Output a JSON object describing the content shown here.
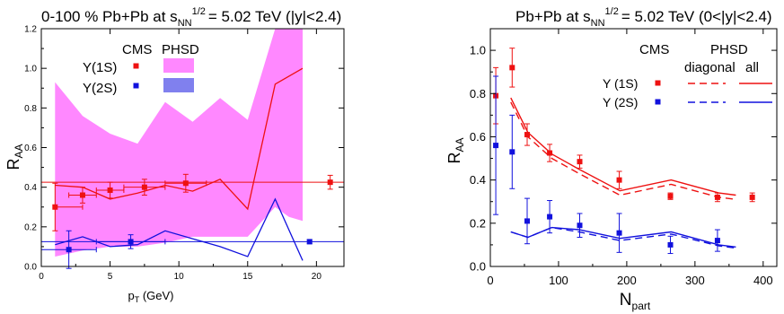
{
  "colors": {
    "cms1s": "#ee1111",
    "cms2s": "#1111dd",
    "band1s": "#ff88ff",
    "band2s": "#8080ee",
    "frame": "#000000"
  },
  "chart_data": [
    {
      "type": "line",
      "title_main": "0-100 % Pb+Pb at s",
      "title_sub": "NN",
      "title_sup": "1/2",
      "title_tail": "= 5.02 TeV (|y|<2.4)",
      "xlabel_main": "p",
      "xlabel_sub": "T",
      "xlabel_tail": " (GeV)",
      "ylabel_main": "R",
      "ylabel_sub": "AA",
      "xlim": [
        0,
        22
      ],
      "ylim": [
        0,
        1.2
      ],
      "xticks": [
        0,
        5,
        10,
        15,
        20
      ],
      "yticks": [
        0,
        0.2,
        0.4,
        0.6,
        0.8,
        1.0,
        1.2
      ],
      "legend": {
        "cms_label": "CMS",
        "phsd_label": "PHSD",
        "labels": [
          "Υ(1S)",
          "Υ(2S)"
        ]
      },
      "cms_1s": [
        {
          "x": 1.0,
          "y": 0.3,
          "xerr": [
            0.0,
            2.0
          ],
          "yerr": 0.12
        },
        {
          "x": 3.0,
          "y": 0.36,
          "xerr": [
            1.0,
            1.0
          ],
          "yerr": 0.04
        },
        {
          "x": 5.0,
          "y": 0.385,
          "xerr": [
            1.0,
            1.0
          ],
          "yerr": 0.04
        },
        {
          "x": 7.5,
          "y": 0.4,
          "xerr": [
            1.5,
            1.5
          ],
          "yerr": 0.04
        },
        {
          "x": 10.5,
          "y": 0.42,
          "xerr": [
            1.5,
            1.5
          ],
          "yerr": 0.045
        },
        {
          "x": 21.0,
          "y": 0.425,
          "xerr": [
            0,
            0
          ],
          "yerr": 0.035
        }
      ],
      "cms_1s_hline": 0.425,
      "cms_2s": [
        {
          "x": 2.0,
          "y": 0.085,
          "xerr": [
            2.0,
            2.0
          ],
          "yerr": 0.095
        },
        {
          "x": 6.5,
          "y": 0.125,
          "xerr": [
            2.5,
            2.5
          ],
          "yerr": 0.035
        },
        {
          "x": 19.5,
          "y": 0.125,
          "xerr": [
            0,
            0
          ],
          "yerr": 0.01
        }
      ],
      "cms_2s_hline": 0.125,
      "phsd_1s_band": {
        "x": [
          1,
          3,
          5,
          7,
          9,
          11,
          13,
          15,
          17,
          18,
          19
        ],
        "upper": [
          0.93,
          0.76,
          0.67,
          0.62,
          0.83,
          0.73,
          0.85,
          0.74,
          1.2,
          1.2,
          1.2
        ],
        "lower": [
          0.05,
          0.08,
          0.1,
          0.1,
          0.12,
          0.15,
          0.15,
          0.15,
          0.3,
          0.25,
          0.23
        ]
      },
      "phsd_1s_line": {
        "x": [
          1,
          3,
          5,
          7,
          9,
          11,
          13,
          15,
          17,
          19
        ],
        "y": [
          0.41,
          0.4,
          0.34,
          0.37,
          0.41,
          0.38,
          0.44,
          0.29,
          0.92,
          1.0
        ]
      },
      "phsd_2s_line": {
        "x": [
          1,
          3,
          5,
          7,
          9,
          11,
          13,
          15,
          17,
          19
        ],
        "y": [
          0.11,
          0.15,
          0.1,
          0.11,
          0.18,
          0.14,
          0.1,
          0.05,
          0.34,
          0.03
        ]
      }
    },
    {
      "type": "line",
      "title_main": "Pb+Pb at s",
      "title_sub": "NN",
      "title_sup": "1/2",
      "title_tail": "= 5.02 TeV (0<|y|<2.4)",
      "xlabel_main": "N",
      "xlabel_sub": "part",
      "ylabel_main": "R",
      "ylabel_sub": "AA",
      "xlim": [
        0,
        420
      ],
      "ylim": [
        0,
        1.1
      ],
      "xticks": [
        0,
        100,
        200,
        300,
        400
      ],
      "yticks": [
        0,
        0.2,
        0.4,
        0.6,
        0.8,
        1.0
      ],
      "legend": {
        "cms_label": "CMS",
        "phsd_label": "PHSD",
        "diagonal_label": "diagonal",
        "all_label": "all",
        "labels": [
          "Υ (1S)",
          "Υ (2S)"
        ]
      },
      "cms_1s": [
        {
          "x": 8,
          "y": 0.79,
          "yerr": 0.13
        },
        {
          "x": 32,
          "y": 0.92,
          "yerr": 0.09
        },
        {
          "x": 54,
          "y": 0.61,
          "yerr": 0.05
        },
        {
          "x": 87,
          "y": 0.525,
          "yerr": 0.04
        },
        {
          "x": 131,
          "y": 0.485,
          "yerr": 0.03
        },
        {
          "x": 189,
          "y": 0.4,
          "yerr": 0.04
        },
        {
          "x": 264,
          "y": 0.325,
          "yerr": 0.015
        },
        {
          "x": 333,
          "y": 0.32,
          "yerr": 0.02
        },
        {
          "x": 384,
          "y": 0.32,
          "yerr": 0.02
        }
      ],
      "cms_2s": [
        {
          "x": 8,
          "y": 0.56,
          "yerr": 0.32
        },
        {
          "x": 32,
          "y": 0.53,
          "yerr": 0.17
        },
        {
          "x": 54,
          "y": 0.21,
          "yerr": 0.105
        },
        {
          "x": 87,
          "y": 0.23,
          "yerr": 0.075
        },
        {
          "x": 131,
          "y": 0.19,
          "yerr": 0.055
        },
        {
          "x": 189,
          "y": 0.155,
          "yerr": 0.09
        },
        {
          "x": 264,
          "y": 0.1,
          "yerr": 0.04
        },
        {
          "x": 333,
          "y": 0.12,
          "yerr": 0.05
        }
      ],
      "phsd_1s_all": {
        "x": [
          30,
          55,
          90,
          130,
          190,
          265,
          335,
          360
        ],
        "y": [
          0.78,
          0.62,
          0.52,
          0.45,
          0.35,
          0.4,
          0.34,
          0.33
        ]
      },
      "phsd_1s_diag": {
        "x": [
          30,
          55,
          90,
          130,
          190,
          265,
          335,
          360
        ],
        "y": [
          0.76,
          0.6,
          0.5,
          0.43,
          0.33,
          0.38,
          0.32,
          0.31
        ]
      },
      "phsd_2s_all": {
        "x": [
          30,
          55,
          90,
          130,
          190,
          265,
          335,
          360
        ],
        "y": [
          0.16,
          0.135,
          0.18,
          0.17,
          0.13,
          0.16,
          0.1,
          0.09
        ]
      },
      "phsd_2s_diag": {
        "x": [
          30,
          55,
          90,
          130,
          190,
          265,
          335,
          360
        ],
        "y": [
          0.16,
          0.135,
          0.18,
          0.16,
          0.12,
          0.15,
          0.095,
          0.085
        ]
      }
    }
  ]
}
